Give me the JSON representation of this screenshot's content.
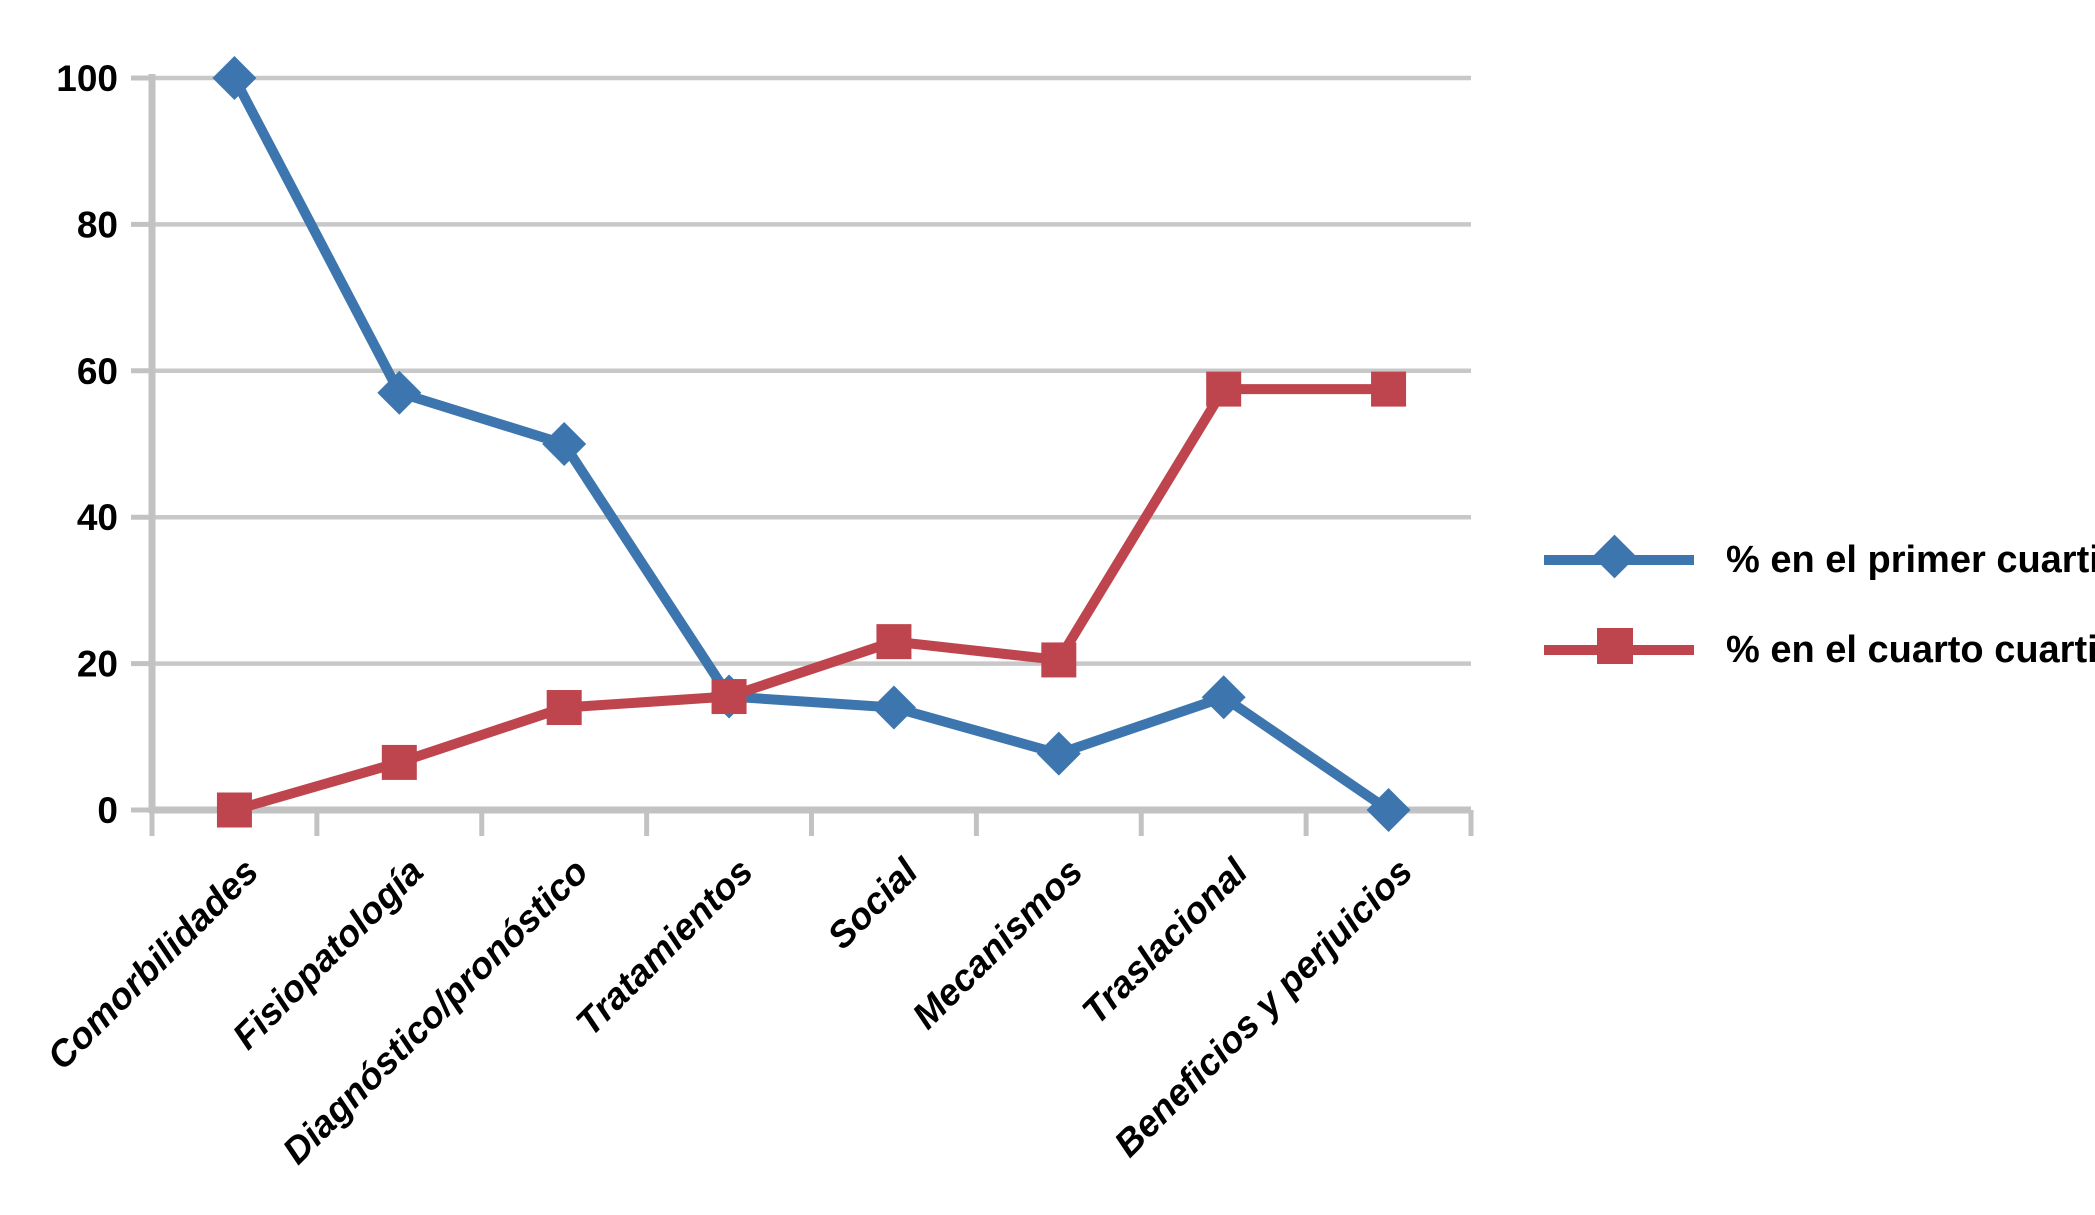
{
  "chart_data": {
    "type": "line",
    "title": "",
    "xlabel": "",
    "ylabel": "",
    "categories": [
      "Comorbilidades",
      "Fisiopatología",
      "Diagnóstico/pronóstico",
      "Tratamientos",
      "Social",
      "Mecanismos",
      "Traslacional",
      "Beneficios y perjuicios"
    ],
    "series": [
      {
        "name": "% en el primer cuartil",
        "marker": "diamond",
        "color": "#3D76AE",
        "values": [
          100,
          57,
          50,
          15.5,
          14,
          7.7,
          15.4,
          0
        ]
      },
      {
        "name": "% en el cuarto cuartil",
        "marker": "square",
        "color": "#BE454E",
        "values": [
          0,
          6.5,
          14,
          15.5,
          23,
          20.5,
          57.5,
          57.5
        ]
      }
    ],
    "yticks": [
      0,
      20,
      40,
      60,
      80,
      100
    ],
    "ylim": [
      0,
      100
    ],
    "grid": true,
    "legend_position": "right"
  },
  "colors": {
    "gridline": "#C8C8C8",
    "axis": "#C2C2C2",
    "text": "#000000",
    "background": "#FFFFFF"
  }
}
